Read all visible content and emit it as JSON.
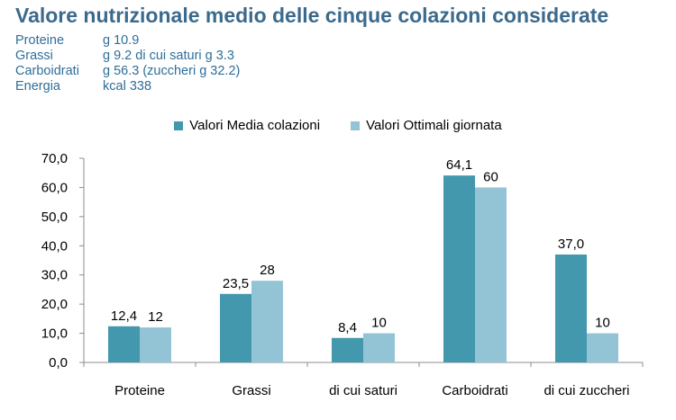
{
  "header": {
    "title": "Valore nutrizionale medio delle cinque colazioni considerate"
  },
  "stats": [
    {
      "label": "Proteine",
      "value": "g 10.9"
    },
    {
      "label": "Grassi",
      "value": "g 9.2 di cui saturi g 3.3"
    },
    {
      "label": "Carboidrati",
      "value": "g 56.3 (zuccheri g 32.2)"
    },
    {
      "label": "Energia",
      "value": "kcal 338"
    }
  ],
  "colors": {
    "series1": "#4398ad",
    "series2": "#93c4d6",
    "title": "#3b6a8c",
    "stats": "#2f6e9a"
  },
  "chart_data": {
    "type": "bar",
    "categories": [
      "Proteine",
      "Grassi",
      "di cui saturi",
      "Carboidrati",
      "di cui zuccheri"
    ],
    "series": [
      {
        "name": "Valori Media colazioni",
        "values": [
          12.4,
          23.5,
          8.4,
          64.1,
          37.0
        ],
        "labels": [
          "12,4",
          "23,5",
          "8,4",
          "64,1",
          "37,0"
        ]
      },
      {
        "name": "Valori Ottimali giornata",
        "values": [
          12,
          28,
          10,
          60,
          10
        ],
        "labels": [
          "12",
          "28",
          "10",
          "60",
          "10"
        ]
      }
    ],
    "y_ticks": [
      "0,0",
      "10,0",
      "20,0",
      "30,0",
      "40,0",
      "50,0",
      "60,0",
      "70,0"
    ],
    "ylim": [
      0,
      70
    ],
    "legend_position": "top-center",
    "grid": false,
    "title": "",
    "xlabel": "",
    "ylabel": ""
  }
}
